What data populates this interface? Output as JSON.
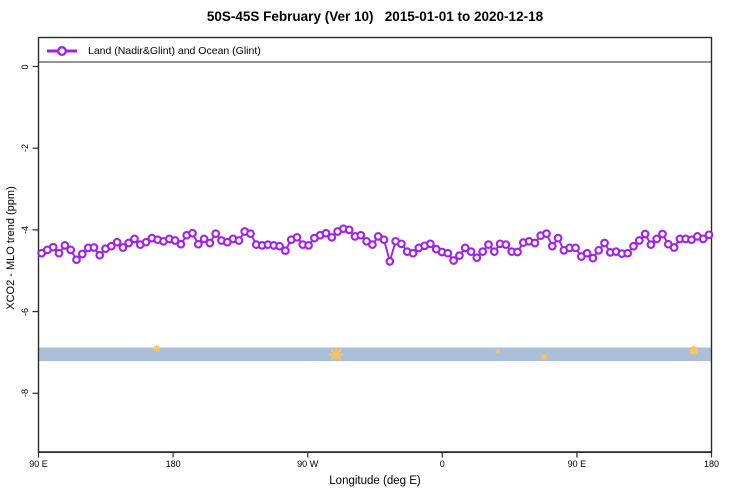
{
  "title": "50S-45S February (Ver 10)   2015-01-01 to 2020-12-18",
  "legend": {
    "label": "Land (Nadir&Glint) and Ocean (Glint)",
    "marker": "open-circle-on-line",
    "color": "#A020F0"
  },
  "axes": {
    "x": {
      "label": "Longitude (deg E)",
      "tick_labels": [
        "90 E",
        "180",
        "90 W",
        "0",
        "90 E",
        "180"
      ],
      "tick_values_deg": [
        90,
        180,
        270,
        360,
        450,
        540
      ]
    },
    "y": {
      "label": "XCO2 - MLO trend (ppm)",
      "tick_labels": [
        "0",
        "-2",
        "-4",
        "-6",
        "-8"
      ],
      "tick_values": [
        0,
        -2,
        -4,
        -6,
        -8
      ]
    }
  },
  "colors": {
    "series_purple": "#A020F0",
    "band_blue": "#AABFD9",
    "flag_orange": "#F7C45E",
    "axis_dark": "#2b2b2b"
  },
  "chart_data": {
    "type": "line",
    "title": "50S-45S February (Ver 10)   2015-01-01 to 2020-12-18",
    "xlabel": "Longitude (deg E)",
    "ylabel": "XCO2 - MLO trend (ppm)",
    "xlim_deg": [
      90,
      540
    ],
    "ylim": [
      -9.4,
      0.7
    ],
    "grid": false,
    "legend_position": "top-left-full-width-box",
    "series": [
      {
        "name": "Land (Nadir&Glint) and Ocean (Glint)",
        "color": "#A020F0",
        "marker": "open-circle",
        "x_deg_start": 92.1,
        "x_deg_step": 3.88,
        "values_ppm": [
          -4.57,
          -4.49,
          -4.42,
          -4.57,
          -4.38,
          -4.49,
          -4.73,
          -4.59,
          -4.44,
          -4.43,
          -4.62,
          -4.46,
          -4.4,
          -4.3,
          -4.43,
          -4.32,
          -4.22,
          -4.36,
          -4.3,
          -4.2,
          -4.24,
          -4.28,
          -4.22,
          -4.26,
          -4.35,
          -4.13,
          -4.08,
          -4.35,
          -4.22,
          -4.32,
          -4.09,
          -4.26,
          -4.3,
          -4.22,
          -4.26,
          -4.04,
          -4.09,
          -4.36,
          -4.38,
          -4.36,
          -4.38,
          -4.4,
          -4.51,
          -4.24,
          -4.18,
          -4.36,
          -4.38,
          -4.2,
          -4.13,
          -4.08,
          -4.18,
          -4.04,
          -3.97,
          -4.0,
          -4.16,
          -4.13,
          -4.28,
          -4.36,
          -4.16,
          -4.24,
          -4.77,
          -4.28,
          -4.34,
          -4.53,
          -4.57,
          -4.44,
          -4.39,
          -4.34,
          -4.47,
          -4.54,
          -4.57,
          -4.75,
          -4.63,
          -4.44,
          -4.53,
          -4.68,
          -4.53,
          -4.36,
          -4.53,
          -4.34,
          -4.36,
          -4.53,
          -4.54,
          -4.31,
          -4.28,
          -4.32,
          -4.14,
          -4.09,
          -4.4,
          -4.2,
          -4.5,
          -4.44,
          -4.44,
          -4.65,
          -4.57,
          -4.69,
          -4.5,
          -4.32,
          -4.55,
          -4.53,
          -4.58,
          -4.57,
          -4.4,
          -4.26,
          -4.1,
          -4.36,
          -4.22,
          -4.1,
          -4.35,
          -4.43,
          -4.22,
          -4.22,
          -4.24,
          -4.16,
          -4.22,
          -4.12
        ]
      }
    ],
    "band": {
      "name": "horizontal-band",
      "color": "#AABFD9",
      "x_from_deg": 90,
      "x_to_deg": 540,
      "ppm_top": -6.88,
      "ppm_bottom": -7.21
    },
    "flagged_marks": {
      "name": "orange-asterisk-marks",
      "color": "#F7C45E",
      "points": [
        {
          "lon_deg": 169,
          "ppm": -6.9,
          "size": 5
        },
        {
          "lon_deg": 289,
          "ppm": -7.05,
          "size": 12
        },
        {
          "lon_deg": 397,
          "ppm": -6.96,
          "size": 3
        },
        {
          "lon_deg": 428,
          "ppm": -7.1,
          "size": 4.5
        },
        {
          "lon_deg": 528,
          "ppm": -6.95,
          "size": 7
        }
      ]
    }
  }
}
